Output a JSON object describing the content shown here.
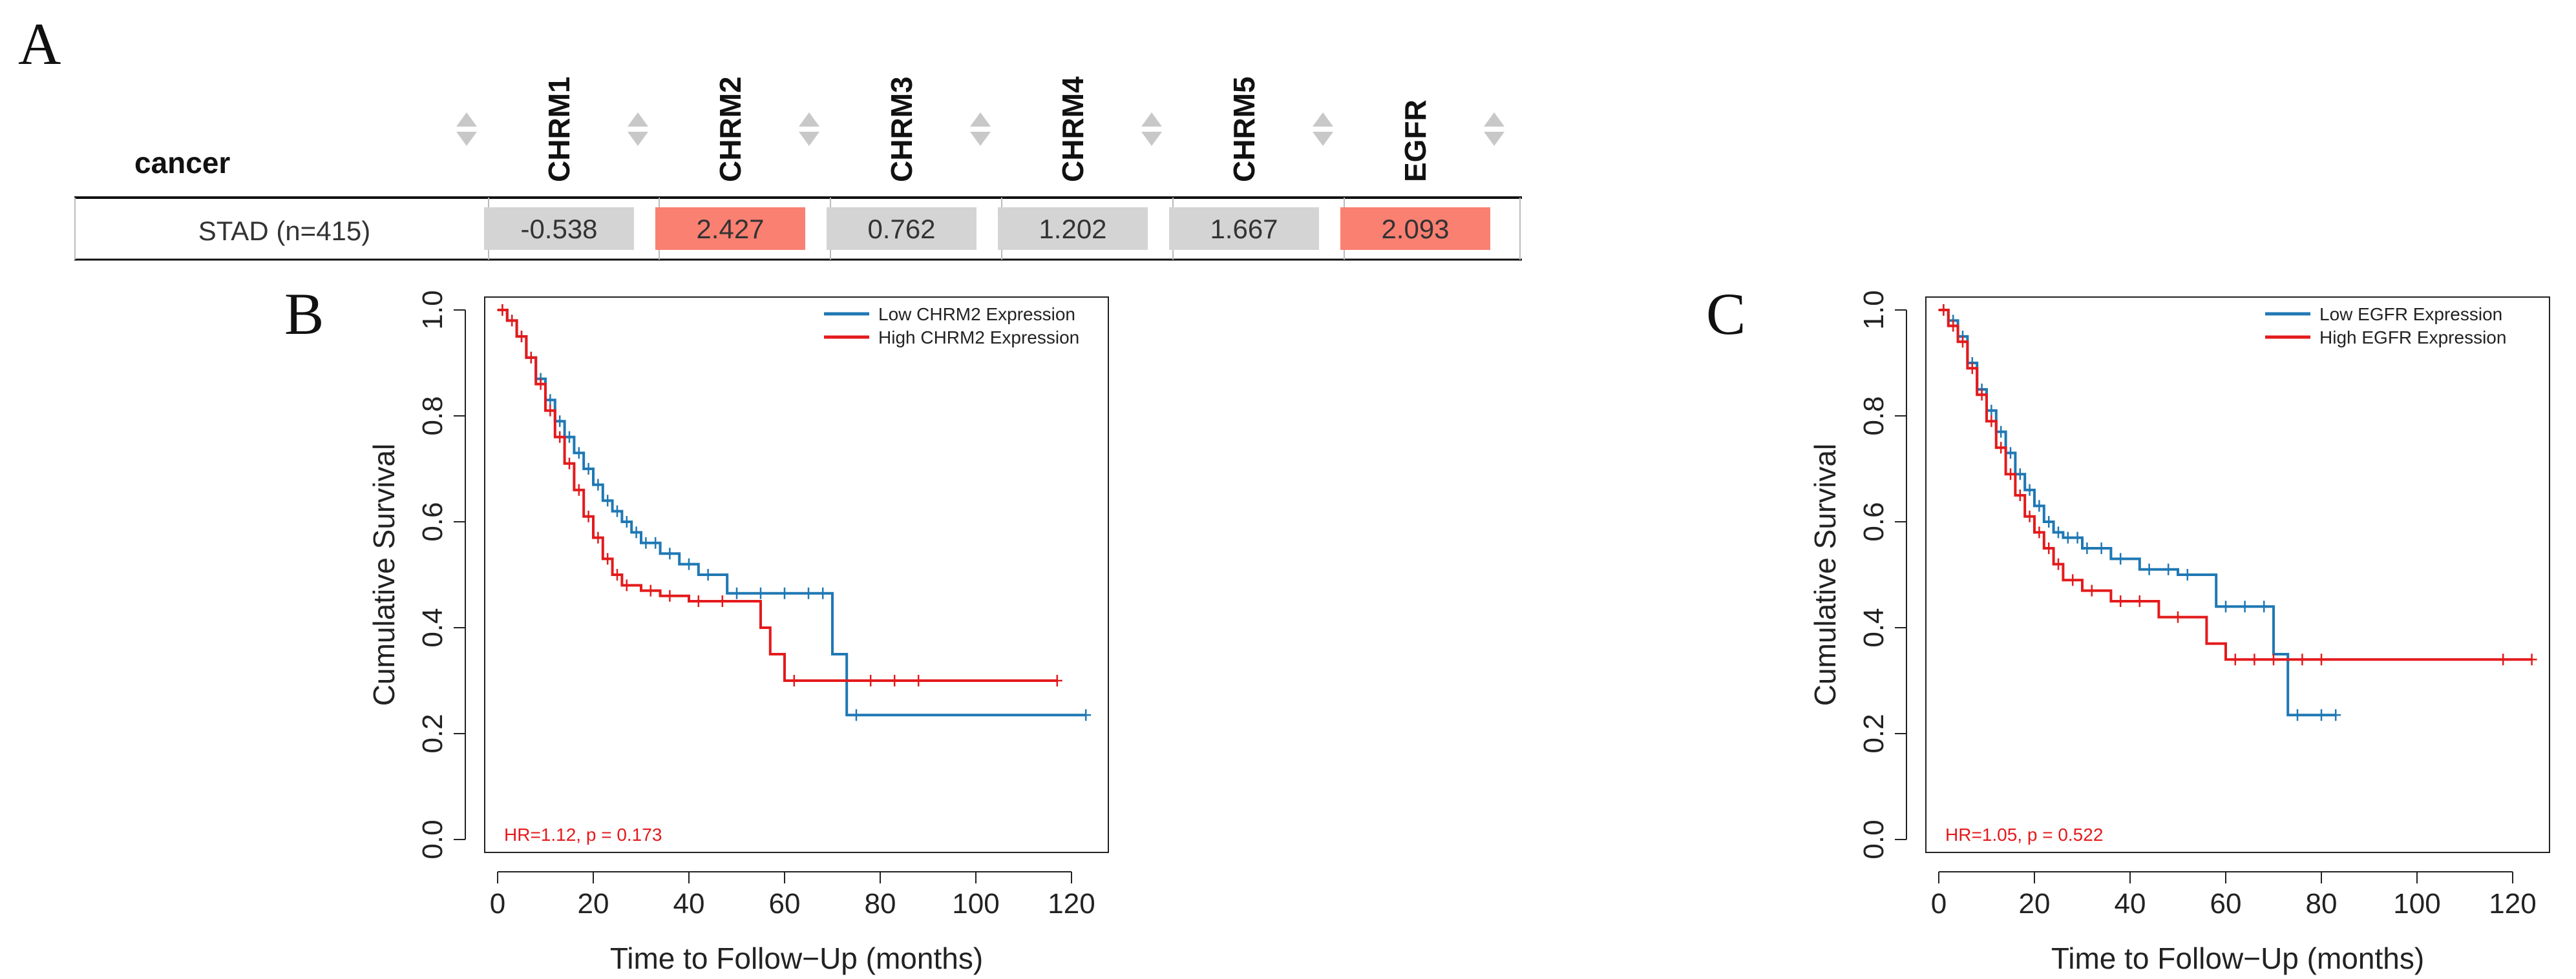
{
  "panels": {
    "a": "A",
    "b": "B",
    "c": "C"
  },
  "table": {
    "row_header": "cancer",
    "columns": [
      "CHRM1",
      "CHRM2",
      "CHRM3",
      "CHRM4",
      "CHRM5",
      "EGFR"
    ],
    "row_label": "STAD (n=415)",
    "values": [
      "-0.538",
      "2.427",
      "0.762",
      "1.202",
      "1.667",
      "2.093"
    ],
    "cell_colors": [
      "#d4d4d4",
      "#fa8072",
      "#d4d4d4",
      "#d4d4d4",
      "#d4d4d4",
      "#fa8072"
    ],
    "sort_icon": "sort-arrows-icon"
  },
  "chart_data": [
    {
      "type": "line",
      "title": "",
      "xlabel": "Time to Follow−Up (months)",
      "ylabel": "Cumulative Survival",
      "xlim": [
        0,
        125
      ],
      "ylim": [
        0,
        1
      ],
      "xticks": [
        "0",
        "20",
        "40",
        "60",
        "80",
        "100",
        "120"
      ],
      "yticks": [
        "0.0",
        "0.2",
        "0.4",
        "0.6",
        "0.8",
        "1.0"
      ],
      "annotation": "HR=1.12, p = 0.173",
      "legend_position": "top-right",
      "series": [
        {
          "name": "Low CHRM2 Expression",
          "color": "#1f78b4",
          "x": [
            0,
            2,
            4,
            6,
            8,
            10,
            12,
            14,
            16,
            18,
            20,
            22,
            24,
            26,
            28,
            30,
            34,
            38,
            42,
            48,
            70,
            73,
            123
          ],
          "y": [
            1.0,
            0.98,
            0.95,
            0.91,
            0.87,
            0.83,
            0.79,
            0.76,
            0.73,
            0.7,
            0.67,
            0.64,
            0.62,
            0.6,
            0.58,
            0.56,
            0.54,
            0.52,
            0.5,
            0.465,
            0.35,
            0.235,
            0.235
          ],
          "censor_x": [
            1,
            3,
            5,
            7,
            9,
            11,
            13,
            15,
            17,
            19,
            21,
            23,
            25,
            27,
            29,
            31,
            33,
            36,
            40,
            44,
            50,
            55,
            60,
            65,
            68,
            75,
            123
          ]
        },
        {
          "name": "High CHRM2 Expression",
          "color": "#e31a1c",
          "x": [
            0,
            2,
            4,
            6,
            8,
            10,
            12,
            14,
            16,
            18,
            20,
            22,
            24,
            26,
            30,
            34,
            40,
            48,
            55,
            57,
            60,
            117
          ],
          "y": [
            1.0,
            0.98,
            0.95,
            0.91,
            0.86,
            0.81,
            0.76,
            0.71,
            0.66,
            0.61,
            0.57,
            0.53,
            0.5,
            0.48,
            0.47,
            0.46,
            0.45,
            0.45,
            0.4,
            0.35,
            0.3,
            0.3
          ],
          "censor_x": [
            1,
            3,
            5,
            7,
            9,
            11,
            13,
            15,
            17,
            19,
            21,
            23,
            25,
            27,
            32,
            36,
            42,
            47,
            62,
            78,
            83,
            88,
            117
          ]
        }
      ]
    },
    {
      "type": "line",
      "title": "",
      "xlabel": "Time to Follow−Up (months)",
      "ylabel": "Cumulative Survival",
      "xlim": [
        0,
        125
      ],
      "ylim": [
        0,
        1
      ],
      "xticks": [
        "0",
        "20",
        "40",
        "60",
        "80",
        "100",
        "120"
      ],
      "yticks": [
        "0.0",
        "0.2",
        "0.4",
        "0.6",
        "0.8",
        "1.0"
      ],
      "annotation": "HR=1.05, p = 0.522",
      "legend_position": "top-right",
      "series": [
        {
          "name": "Low EGFR Expression",
          "color": "#1f78b4",
          "x": [
            0,
            2,
            4,
            6,
            8,
            10,
            12,
            14,
            16,
            18,
            20,
            22,
            24,
            26,
            30,
            36,
            42,
            50,
            58,
            70,
            73,
            83
          ],
          "y": [
            1.0,
            0.98,
            0.95,
            0.9,
            0.85,
            0.81,
            0.77,
            0.73,
            0.69,
            0.66,
            0.63,
            0.6,
            0.58,
            0.57,
            0.55,
            0.53,
            0.51,
            0.5,
            0.44,
            0.35,
            0.235,
            0.235
          ],
          "censor_x": [
            1,
            3,
            5,
            7,
            9,
            11,
            13,
            15,
            17,
            19,
            21,
            23,
            25,
            27,
            29,
            31,
            34,
            38,
            44,
            48,
            52,
            60,
            64,
            68,
            75,
            80,
            83
          ]
        },
        {
          "name": "High EGFR Expression",
          "color": "#e31a1c",
          "x": [
            0,
            2,
            4,
            6,
            8,
            10,
            12,
            14,
            16,
            18,
            20,
            22,
            24,
            26,
            30,
            36,
            46,
            56,
            60,
            124
          ],
          "y": [
            1.0,
            0.97,
            0.94,
            0.89,
            0.84,
            0.79,
            0.74,
            0.69,
            0.65,
            0.61,
            0.58,
            0.55,
            0.52,
            0.49,
            0.47,
            0.45,
            0.42,
            0.37,
            0.34,
            0.34
          ],
          "censor_x": [
            1,
            3,
            5,
            7,
            9,
            11,
            13,
            15,
            17,
            19,
            21,
            23,
            25,
            28,
            32,
            38,
            42,
            50,
            62,
            66,
            70,
            76,
            80,
            118,
            124
          ]
        }
      ]
    }
  ]
}
